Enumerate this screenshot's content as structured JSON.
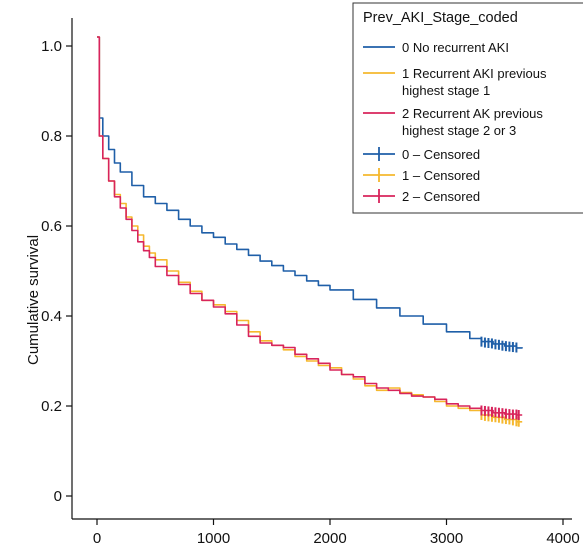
{
  "chart_data": {
    "type": "line",
    "title": "",
    "xlabel": "",
    "ylabel": "Cumulative survival",
    "xlim": [
      -200,
      4000
    ],
    "ylim": [
      -0.05,
      1.06
    ],
    "x_ticks": [
      "0",
      "1000",
      "2000",
      "3000",
      "4000"
    ],
    "y_ticks": [
      "0",
      "0.2",
      "0.4",
      "0.6",
      "0.8",
      "1.0"
    ],
    "grid": false,
    "legend": {
      "title": "Prev_AKI_Stage_coded",
      "placement": "top-right",
      "entries": [
        {
          "label": "0 No recurrent AKI",
          "color": "#1f5fa8",
          "kind": "line"
        },
        {
          "label": "1 Recurrent AKI previous highest stage 1",
          "color": "#f5b82e",
          "kind": "line"
        },
        {
          "label": "2 Recurrent AK previous highest stage 2 or 3",
          "color": "#d8245c",
          "kind": "line"
        },
        {
          "label": "0 – Censored",
          "color": "#1f5fa8",
          "kind": "censor"
        },
        {
          "label": "1 – Censored",
          "color": "#f5b82e",
          "kind": "censor"
        },
        {
          "label": "2 – Censored",
          "color": "#d8245c",
          "kind": "censor"
        }
      ]
    },
    "series": [
      {
        "name": "0 No recurrent AKI",
        "color": "#1f5fa8",
        "x": [
          0,
          20,
          50,
          100,
          150,
          200,
          300,
          400,
          500,
          600,
          700,
          800,
          900,
          1000,
          1100,
          1200,
          1300,
          1400,
          1500,
          1600,
          1700,
          1800,
          1900,
          2000,
          2200,
          2400,
          2600,
          2800,
          3000,
          3200,
          3300,
          3400,
          3500,
          3600,
          3650
        ],
        "y": [
          1.02,
          0.84,
          0.8,
          0.77,
          0.74,
          0.72,
          0.69,
          0.665,
          0.65,
          0.635,
          0.615,
          0.6,
          0.585,
          0.575,
          0.56,
          0.548,
          0.535,
          0.522,
          0.512,
          0.5,
          0.49,
          0.478,
          0.468,
          0.458,
          0.437,
          0.418,
          0.4,
          0.382,
          0.365,
          0.35,
          0.343,
          0.338,
          0.333,
          0.329,
          0.328
        ]
      },
      {
        "name": "1 Recurrent AKI previous highest stage 1",
        "color": "#f5b82e",
        "x": [
          0,
          20,
          50,
          100,
          150,
          200,
          250,
          300,
          350,
          400,
          450,
          500,
          600,
          700,
          800,
          900,
          1000,
          1100,
          1200,
          1300,
          1400,
          1500,
          1600,
          1700,
          1800,
          1900,
          2000,
          2100,
          2200,
          2300,
          2400,
          2500,
          2600,
          2700,
          2800,
          2900,
          3000,
          3100,
          3200,
          3300,
          3400,
          3500,
          3600,
          3650
        ],
        "y": [
          1.02,
          0.8,
          0.75,
          0.7,
          0.67,
          0.65,
          0.62,
          0.6,
          0.58,
          0.555,
          0.54,
          0.525,
          0.5,
          0.475,
          0.455,
          0.435,
          0.425,
          0.41,
          0.39,
          0.365,
          0.345,
          0.335,
          0.325,
          0.31,
          0.3,
          0.29,
          0.285,
          0.27,
          0.26,
          0.245,
          0.235,
          0.24,
          0.23,
          0.225,
          0.22,
          0.21,
          0.2,
          0.195,
          0.19,
          0.18,
          0.175,
          0.17,
          0.165,
          0.165
        ]
      },
      {
        "name": "2 Recurrent AK previous highest stage 2 or 3",
        "color": "#d8245c",
        "x": [
          0,
          20,
          50,
          100,
          150,
          200,
          250,
          300,
          350,
          400,
          450,
          500,
          600,
          700,
          800,
          900,
          1000,
          1100,
          1200,
          1300,
          1400,
          1500,
          1600,
          1700,
          1800,
          1900,
          2000,
          2100,
          2200,
          2300,
          2400,
          2500,
          2600,
          2700,
          2800,
          2900,
          3000,
          3100,
          3200,
          3300,
          3400,
          3500,
          3600,
          3650
        ],
        "y": [
          1.02,
          0.8,
          0.75,
          0.7,
          0.665,
          0.64,
          0.615,
          0.59,
          0.565,
          0.545,
          0.53,
          0.51,
          0.49,
          0.47,
          0.45,
          0.435,
          0.42,
          0.405,
          0.38,
          0.355,
          0.34,
          0.335,
          0.33,
          0.315,
          0.305,
          0.295,
          0.28,
          0.27,
          0.265,
          0.25,
          0.24,
          0.235,
          0.228,
          0.222,
          0.22,
          0.215,
          0.205,
          0.2,
          0.195,
          0.19,
          0.185,
          0.182,
          0.18,
          0.18
        ]
      }
    ],
    "censored": [
      {
        "name": "0 – Censored",
        "color": "#1f5fa8",
        "x": [
          3300,
          3330,
          3360,
          3390,
          3420,
          3450,
          3480,
          3510,
          3540,
          3570,
          3600
        ],
        "y": [
          0.343,
          0.341,
          0.34,
          0.339,
          0.337,
          0.336,
          0.334,
          0.333,
          0.332,
          0.331,
          0.33
        ]
      },
      {
        "name": "1 – Censored",
        "color": "#f5b82e",
        "x": [
          3300,
          3330,
          3360,
          3390,
          3420,
          3450,
          3480,
          3510,
          3540,
          3570,
          3600,
          3620
        ],
        "y": [
          0.18,
          0.178,
          0.177,
          0.176,
          0.175,
          0.174,
          0.172,
          0.171,
          0.17,
          0.168,
          0.166,
          0.165
        ]
      },
      {
        "name": "2 – Censored",
        "color": "#d8245c",
        "x": [
          3300,
          3330,
          3360,
          3390,
          3420,
          3450,
          3480,
          3510,
          3540,
          3570,
          3600,
          3620
        ],
        "y": [
          0.19,
          0.189,
          0.188,
          0.187,
          0.186,
          0.185,
          0.184,
          0.183,
          0.182,
          0.181,
          0.181,
          0.18
        ]
      }
    ]
  }
}
